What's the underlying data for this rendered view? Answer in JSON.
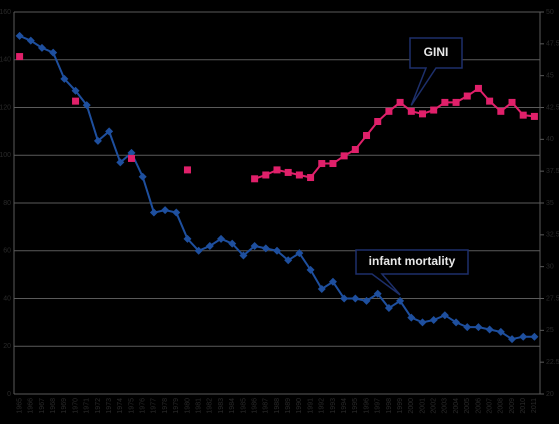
{
  "chart_data": {
    "type": "line",
    "categories": [
      "1965",
      "1966",
      "1967",
      "1968",
      "1969",
      "1970",
      "1971",
      "1972",
      "1973",
      "1974",
      "1975",
      "1976",
      "1977",
      "1978",
      "1979",
      "1980",
      "1981",
      "1982",
      "1983",
      "1984",
      "1985",
      "1986",
      "1987",
      "1988",
      "1989",
      "1990",
      "1991",
      "1992",
      "1993",
      "1994",
      "1995",
      "1996",
      "1997",
      "1998",
      "1999",
      "2000",
      "2001",
      "2002",
      "2003",
      "2004",
      "2005",
      "2006",
      "2007",
      "2008",
      "2009",
      "2010",
      "2011"
    ],
    "series": [
      {
        "name": "infant mortality",
        "color": "#1e4f9e",
        "axis": "y",
        "values": [
          150,
          148,
          145,
          143,
          132,
          127,
          121,
          106,
          110,
          97,
          101,
          91,
          76,
          77,
          76,
          65,
          60,
          62,
          65,
          63,
          58,
          62,
          61,
          60,
          56,
          59,
          52,
          44,
          47,
          40,
          40,
          39,
          42,
          36,
          39,
          32,
          30,
          31,
          33,
          30,
          28,
          28,
          27,
          26,
          23,
          24,
          24
        ]
      },
      {
        "name": "GINI",
        "color": "#e0206a",
        "axis": "y2",
        "values": [
          46.5,
          null,
          null,
          null,
          null,
          43.0,
          null,
          null,
          null,
          null,
          38.5,
          null,
          null,
          null,
          null,
          37.6,
          null,
          null,
          null,
          null,
          null,
          36.9,
          37.2,
          37.6,
          37.4,
          37.2,
          37.0,
          38.1,
          38.1,
          38.7,
          39.2,
          40.3,
          41.4,
          42.2,
          42.9,
          42.2,
          42.0,
          42.3,
          42.9,
          42.9,
          43.4,
          44.0,
          43.0,
          42.2,
          42.9,
          41.9,
          41.8
        ]
      }
    ],
    "ylim": [
      0,
      160
    ],
    "yticks": [
      0,
      20,
      40,
      60,
      80,
      100,
      120,
      140,
      160
    ],
    "y2lim": [
      20,
      50
    ],
    "y2ticks": [
      20,
      22.5,
      25,
      27.5,
      30,
      32.5,
      35,
      37.5,
      40,
      42.5,
      45,
      47.5,
      50
    ],
    "grid": true,
    "annotations": [
      {
        "text": "GINI",
        "series": 1,
        "index": 35
      },
      {
        "text": "infant mortality",
        "series": 0,
        "index": 34
      }
    ]
  }
}
